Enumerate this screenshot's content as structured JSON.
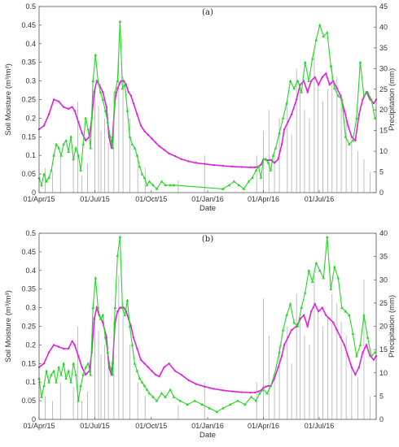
{
  "chart_data": [
    {
      "type": "line",
      "title": "(a)",
      "xlabel": "Date",
      "ylabel": "Soil Moisture (m³/m³)",
      "y2label": "Precipitation (mm)",
      "xticks": [
        "01/Apr/15",
        "01/Jul/15",
        "01/Oct/15",
        "01/Jan/16",
        "01/Apr/16",
        "01/Jul/16"
      ],
      "xtick_days": [
        0,
        91,
        183,
        275,
        366,
        457
      ],
      "xlim_days": [
        0,
        550
      ],
      "ylim": [
        0,
        0.5
      ],
      "yticks": [
        "0",
        "0.05",
        "0.1",
        "0.15",
        "0.2",
        "0.25",
        "0.3",
        "0.35",
        "0.4",
        "0.45",
        "0.5"
      ],
      "y2lim": [
        0,
        45
      ],
      "y2ticks": [
        "0",
        "5",
        "10",
        "15",
        "20",
        "25",
        "30",
        "35",
        "40",
        "45"
      ],
      "colors": {
        "magenta": "#e020e0",
        "green": "#22d822",
        "precip": "#b0b0b0"
      },
      "series": [
        {
          "color": "magenta",
          "style": "line-markers",
          "x": [
            0,
            8,
            16,
            24,
            32,
            40,
            48,
            54,
            58,
            64,
            70,
            76,
            82,
            86,
            90,
            94,
            98,
            104,
            110,
            114,
            118,
            120,
            124,
            128,
            132,
            134,
            138,
            142,
            146,
            150,
            154,
            160,
            166,
            172,
            178,
            184,
            190,
            196,
            204,
            212,
            222,
            232,
            244,
            256,
            270,
            285,
            300,
            315,
            330,
            345,
            352,
            358,
            362,
            366,
            370,
            374,
            378,
            384,
            390,
            396,
            400,
            406,
            412,
            420,
            426,
            432,
            438,
            444,
            450,
            456,
            462,
            468,
            474,
            480,
            486,
            492,
            498,
            504,
            510,
            516,
            522,
            528,
            534,
            540,
            546,
            550
          ],
          "y": [
            0.17,
            0.18,
            0.21,
            0.25,
            0.245,
            0.23,
            0.225,
            0.23,
            0.22,
            0.19,
            0.16,
            0.14,
            0.15,
            0.2,
            0.27,
            0.3,
            0.29,
            0.27,
            0.23,
            0.15,
            0.12,
            0.15,
            0.25,
            0.28,
            0.295,
            0.3,
            0.3,
            0.29,
            0.27,
            0.26,
            0.24,
            0.21,
            0.18,
            0.165,
            0.155,
            0.145,
            0.135,
            0.125,
            0.115,
            0.105,
            0.098,
            0.09,
            0.084,
            0.08,
            0.077,
            0.074,
            0.072,
            0.07,
            0.069,
            0.068,
            0.068,
            0.07,
            0.075,
            0.09,
            0.088,
            0.087,
            0.088,
            0.08,
            0.09,
            0.13,
            0.17,
            0.19,
            0.21,
            0.25,
            0.29,
            0.3,
            0.27,
            0.3,
            0.31,
            0.29,
            0.31,
            0.32,
            0.29,
            0.3,
            0.28,
            0.26,
            0.22,
            0.18,
            0.15,
            0.14,
            0.21,
            0.25,
            0.27,
            0.25,
            0.24,
            0.25
          ]
        },
        {
          "color": "green",
          "style": "line-markers",
          "x": [
            0,
            4,
            8,
            12,
            16,
            20,
            24,
            28,
            32,
            36,
            40,
            44,
            48,
            52,
            56,
            60,
            64,
            68,
            72,
            76,
            80,
            84,
            88,
            92,
            96,
            100,
            104,
            108,
            112,
            116,
            120,
            124,
            128,
            132,
            136,
            140,
            144,
            148,
            152,
            156,
            160,
            164,
            168,
            172,
            176,
            180,
            186,
            192,
            200,
            206,
            214,
            220,
            300,
            310,
            318,
            326,
            334,
            342,
            348,
            354,
            358,
            362,
            366,
            370,
            374,
            378,
            382,
            386,
            392,
            398,
            404,
            410,
            416,
            422,
            428,
            434,
            440,
            446,
            452,
            458,
            464,
            470,
            476,
            482,
            488,
            494,
            500,
            506,
            512,
            518,
            524,
            530,
            536,
            542,
            548
          ],
          "y": [
            0.04,
            0.02,
            0.05,
            0.03,
            0.04,
            0.06,
            0.1,
            0.13,
            0.12,
            0.1,
            0.13,
            0.14,
            0.11,
            0.15,
            0.09,
            0.12,
            0.1,
            0.06,
            0.13,
            0.2,
            0.17,
            0.12,
            0.3,
            0.37,
            0.3,
            0.27,
            0.25,
            0.22,
            0.19,
            0.15,
            0.12,
            0.27,
            0.3,
            0.46,
            0.28,
            0.29,
            0.22,
            0.15,
            0.13,
            0.12,
            0.1,
            0.07,
            0.05,
            0.04,
            0.02,
            0.03,
            0.02,
            0.01,
            0.03,
            0.02,
            0.02,
            0.02,
            0.01,
            0.02,
            0.03,
            0.02,
            0.01,
            0.03,
            0.04,
            0.06,
            0.07,
            0.04,
            0.09,
            0.09,
            0.08,
            0.06,
            0.1,
            0.12,
            0.16,
            0.2,
            0.24,
            0.3,
            0.28,
            0.3,
            0.27,
            0.35,
            0.3,
            0.36,
            0.41,
            0.45,
            0.42,
            0.43,
            0.34,
            0.28,
            0.26,
            0.25,
            0.15,
            0.13,
            0.14,
            0.2,
            0.35,
            0.26,
            0.27,
            0.25,
            0.2
          ]
        }
      ],
      "precip_days": [
        10,
        22,
        35,
        56,
        63,
        70,
        79,
        91,
        97,
        101,
        107,
        113,
        122,
        130,
        137,
        148,
        161,
        173,
        227,
        270,
        355,
        366,
        375,
        384,
        392,
        405,
        412,
        420,
        426,
        433,
        441,
        449,
        455,
        463,
        471,
        478,
        486,
        493,
        501,
        510,
        520,
        530,
        540
      ],
      "precip_mm": [
        6,
        5,
        9,
        8,
        22,
        4,
        7,
        25,
        21,
        15,
        18,
        12,
        24,
        35,
        28,
        18,
        9,
        6,
        3,
        9,
        9,
        15,
        20,
        10,
        18,
        22,
        14,
        30,
        25,
        20,
        18,
        35,
        26,
        22,
        25,
        31,
        28,
        24,
        20,
        14,
        10,
        8,
        5
      ]
    },
    {
      "type": "line",
      "title": "(b)",
      "xlabel": "Date",
      "ylabel": "Soil Moisture (m³/m³)",
      "y2label": "Precipitation (mm)",
      "xticks": [
        "01/Apr/15",
        "01/Jul/15",
        "01/Oct/15",
        "01/Jan/16",
        "01/Apr/16",
        "01/Jul/16"
      ],
      "xtick_days": [
        0,
        91,
        183,
        275,
        366,
        457
      ],
      "xlim_days": [
        0,
        550
      ],
      "ylim": [
        0,
        0.5
      ],
      "yticks": [
        "0",
        "0.05",
        "0.1",
        "0.15",
        "0.2",
        "0.25",
        "0.3",
        "0.35",
        "0.4",
        "0.45",
        "0.5"
      ],
      "y2lim": [
        0,
        40
      ],
      "y2ticks": [
        "0",
        "5",
        "10",
        "15",
        "20",
        "25",
        "30",
        "35",
        "40"
      ],
      "colors": {
        "magenta": "#e020e0",
        "green": "#22d822",
        "precip": "#b0b0b0"
      },
      "series": [
        {
          "color": "magenta",
          "style": "line-markers",
          "x": [
            0,
            8,
            16,
            24,
            32,
            40,
            48,
            54,
            58,
            64,
            70,
            76,
            82,
            86,
            90,
            94,
            98,
            104,
            110,
            114,
            118,
            120,
            124,
            128,
            132,
            134,
            138,
            142,
            146,
            150,
            154,
            160,
            166,
            172,
            178,
            184,
            190,
            196,
            204,
            212,
            222,
            232,
            244,
            256,
            270,
            285,
            300,
            315,
            330,
            345,
            352,
            358,
            362,
            366,
            370,
            374,
            378,
            384,
            390,
            396,
            400,
            406,
            412,
            420,
            426,
            432,
            438,
            444,
            450,
            456,
            462,
            468,
            474,
            480,
            486,
            492,
            498,
            504,
            510,
            516,
            522,
            528,
            534,
            540,
            546,
            550
          ],
          "y": [
            0.14,
            0.15,
            0.18,
            0.2,
            0.195,
            0.19,
            0.19,
            0.21,
            0.2,
            0.17,
            0.14,
            0.12,
            0.13,
            0.18,
            0.27,
            0.3,
            0.28,
            0.26,
            0.22,
            0.14,
            0.12,
            0.15,
            0.26,
            0.29,
            0.3,
            0.3,
            0.3,
            0.29,
            0.27,
            0.25,
            0.22,
            0.19,
            0.16,
            0.15,
            0.14,
            0.13,
            0.12,
            0.115,
            0.14,
            0.15,
            0.13,
            0.12,
            0.105,
            0.095,
            0.088,
            0.082,
            0.078,
            0.075,
            0.073,
            0.072,
            0.072,
            0.075,
            0.078,
            0.085,
            0.088,
            0.09,
            0.09,
            0.11,
            0.14,
            0.17,
            0.2,
            0.22,
            0.24,
            0.25,
            0.27,
            0.28,
            0.25,
            0.29,
            0.31,
            0.29,
            0.3,
            0.28,
            0.27,
            0.26,
            0.24,
            0.22,
            0.2,
            0.17,
            0.14,
            0.12,
            0.14,
            0.18,
            0.2,
            0.17,
            0.16,
            0.17
          ]
        },
        {
          "color": "green",
          "style": "line-markers",
          "x": [
            0,
            4,
            8,
            12,
            16,
            20,
            24,
            28,
            32,
            36,
            40,
            44,
            48,
            52,
            56,
            60,
            64,
            68,
            72,
            76,
            80,
            84,
            88,
            92,
            96,
            100,
            104,
            108,
            112,
            116,
            120,
            124,
            128,
            132,
            136,
            140,
            144,
            148,
            152,
            156,
            160,
            164,
            168,
            172,
            176,
            180,
            186,
            192,
            200,
            206,
            214,
            220,
            230,
            242,
            254,
            266,
            278,
            290,
            300,
            312,
            324,
            336,
            346,
            354,
            360,
            366,
            372,
            378,
            384,
            392,
            398,
            404,
            410,
            416,
            422,
            428,
            434,
            440,
            446,
            452,
            458,
            464,
            470,
            476,
            482,
            488,
            494,
            500,
            506,
            512,
            518,
            524,
            530,
            536,
            542,
            548
          ],
          "y": [
            0.11,
            0.06,
            0.09,
            0.13,
            0.1,
            0.12,
            0.13,
            0.1,
            0.14,
            0.12,
            0.15,
            0.11,
            0.13,
            0.1,
            0.15,
            0.12,
            0.05,
            0.09,
            0.12,
            0.14,
            0.15,
            0.12,
            0.3,
            0.38,
            0.3,
            0.27,
            0.28,
            0.22,
            0.18,
            0.14,
            0.12,
            0.3,
            0.44,
            0.49,
            0.3,
            0.28,
            0.32,
            0.25,
            0.2,
            0.15,
            0.13,
            0.11,
            0.1,
            0.09,
            0.08,
            0.07,
            0.06,
            0.05,
            0.07,
            0.06,
            0.08,
            0.06,
            0.05,
            0.04,
            0.05,
            0.04,
            0.03,
            0.02,
            0.03,
            0.04,
            0.05,
            0.04,
            0.06,
            0.05,
            0.07,
            0.08,
            0.07,
            0.09,
            0.12,
            0.18,
            0.24,
            0.28,
            0.31,
            0.26,
            0.25,
            0.3,
            0.34,
            0.4,
            0.37,
            0.42,
            0.4,
            0.38,
            0.49,
            0.35,
            0.41,
            0.38,
            0.3,
            0.29,
            0.28,
            0.23,
            0.17,
            0.2,
            0.28,
            0.22,
            0.17,
            0.18
          ]
        }
      ],
      "precip_days": [
        10,
        22,
        35,
        56,
        63,
        70,
        79,
        91,
        97,
        101,
        107,
        113,
        122,
        130,
        137,
        148,
        161,
        173,
        227,
        270,
        355,
        366,
        375,
        384,
        392,
        405,
        412,
        420,
        426,
        433,
        441,
        449,
        455,
        463,
        471,
        478,
        486,
        493,
        501,
        510,
        520,
        530,
        540
      ],
      "precip_mm": [
        5,
        4,
        8,
        7,
        20,
        4,
        6,
        22,
        19,
        14,
        16,
        11,
        21,
        31,
        25,
        16,
        8,
        5,
        3,
        8,
        8,
        26,
        18,
        9,
        16,
        20,
        12,
        27,
        22,
        18,
        16,
        31,
        23,
        20,
        22,
        27,
        25,
        21,
        18,
        12,
        9,
        30,
        5
      ]
    }
  ]
}
